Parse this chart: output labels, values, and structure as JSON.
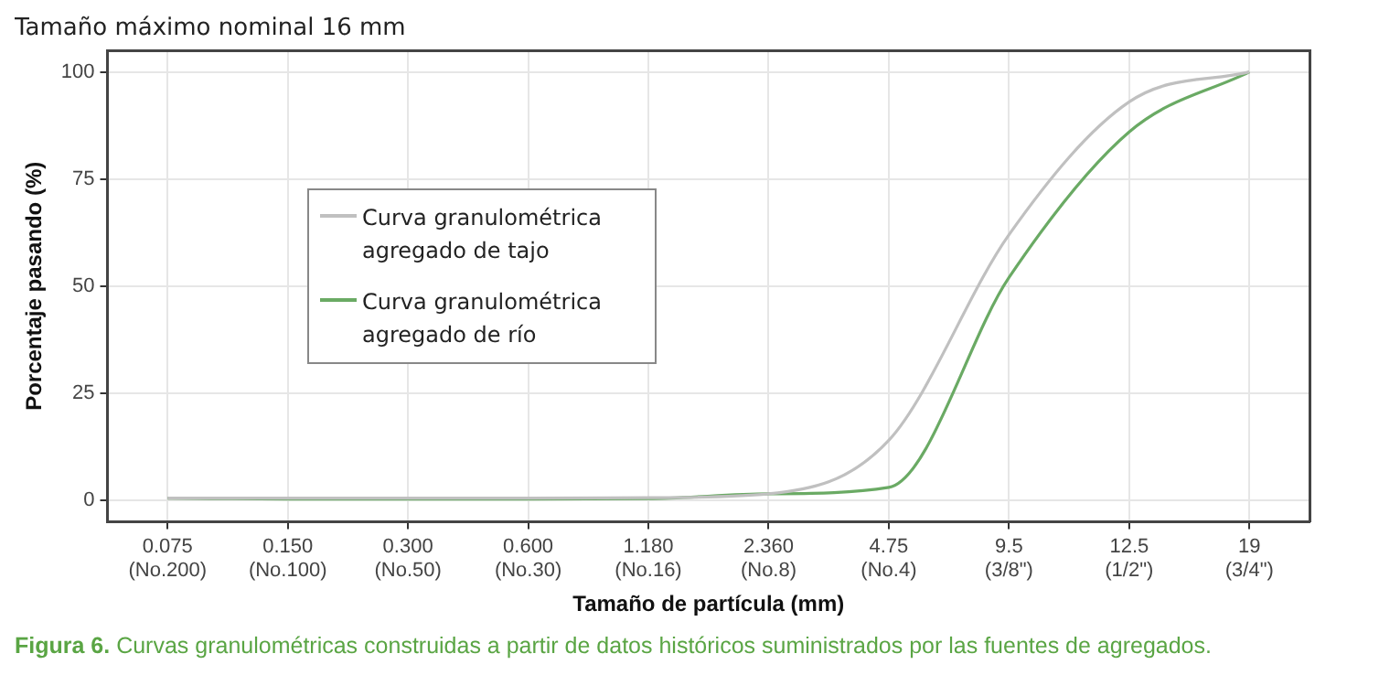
{
  "chart_data": {
    "type": "line",
    "title": "Tamaño máximo nominal 16 mm",
    "xlabel": "Tamaño de partícula (mm)",
    "ylabel": "Porcentaje pasando (%)",
    "categories": [
      "0.075\n(No.200)",
      "0.150\n(No.100)",
      "0.300\n(No.50)",
      "0.600\n(No.30)",
      "1.180\n(No.16)",
      "2.360\n(No.8)",
      "4.75\n(No.4)",
      "9.5\n(3/8\")",
      "12.5\n(1/2\")",
      "19\n(3/4\")"
    ],
    "series": [
      {
        "name": "Curva granulométrica agregado de tajo",
        "color": "#c0c0c0",
        "values": [
          0.5,
          0.5,
          0.5,
          0.5,
          0.6,
          1.5,
          14,
          62,
          93,
          100
        ]
      },
      {
        "name": "Curva granulométrica agregado de río",
        "color": "#6aaa64",
        "values": [
          0.5,
          0.3,
          0.3,
          0.3,
          0.4,
          1.5,
          3,
          52,
          86,
          100
        ]
      }
    ],
    "ylim": [
      -5,
      105
    ],
    "yticks": [
      0,
      25,
      50,
      75,
      100
    ],
    "grid": true,
    "legend": "top left",
    "marker": "none",
    "line_style": "solid",
    "annotations": [
      "Figura 6. Curvas granulométricas construidas a partir de datos históricos suministrados por las fuentes de agregados."
    ]
  }
}
